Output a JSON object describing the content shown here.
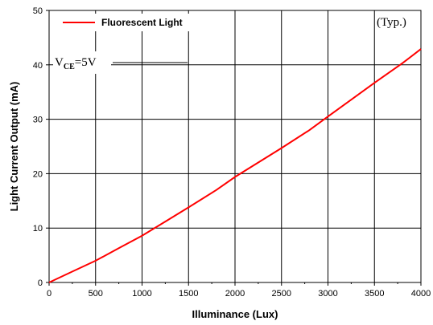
{
  "chart_data": {
    "type": "line",
    "xlabel": "Illuminance (Lux)",
    "ylabel": "Light Current Output (mA)",
    "xlim": [
      0,
      4000
    ],
    "ylim": [
      0,
      50
    ],
    "x_ticks": [
      0,
      500,
      1000,
      1500,
      2000,
      2500,
      3000,
      3500,
      4000
    ],
    "y_ticks": [
      0,
      10,
      20,
      30,
      40,
      50
    ],
    "grid": true,
    "legend_position": "top-left",
    "annotations": {
      "condition_main": "V",
      "condition_sub": "CE",
      "condition_rest": "=5V",
      "typ": "(Typ.)"
    },
    "series": [
      {
        "name": "Fluorescent Light",
        "color": "#ff0000",
        "x": [
          0,
          250,
          500,
          750,
          1000,
          1250,
          1500,
          1800,
          2000,
          2500,
          2800,
          3000,
          3500,
          3800,
          4000
        ],
        "y": [
          0,
          2.0,
          4.0,
          6.3,
          8.6,
          11.2,
          13.8,
          17.0,
          19.4,
          24.7,
          28.0,
          30.5,
          36.7,
          40.3,
          42.9
        ]
      }
    ]
  }
}
